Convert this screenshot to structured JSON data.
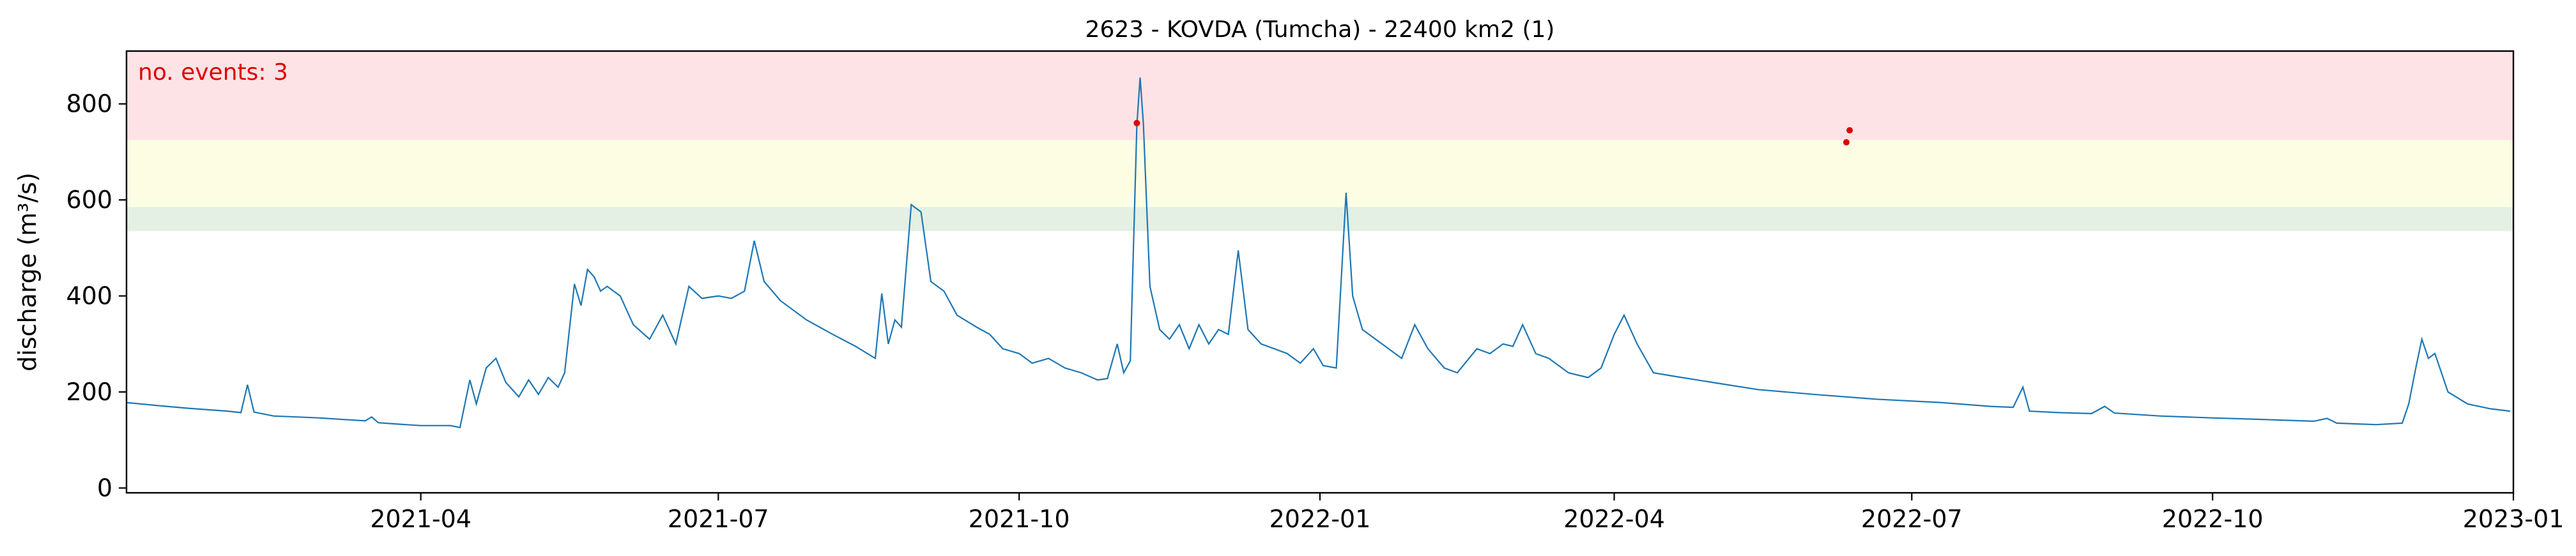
{
  "chart_data": {
    "type": "line",
    "title": "2623 - KOVDA (Tumcha) - 22400 km2 (1)",
    "xlabel": "",
    "ylabel": "discharge (m³/s)",
    "xlim": [
      "2021-01-01",
      "2023-01-01"
    ],
    "ylim": [
      -10,
      910
    ],
    "x_ticks": [
      "2021-04-01",
      "2021-07-01",
      "2021-10-01",
      "2022-01-01",
      "2022-04-01",
      "2022-07-01",
      "2022-10-01",
      "2023-01-01"
    ],
    "x_tick_labels": [
      "2021-04",
      "2021-07",
      "2021-10",
      "2022-01",
      "2022-04",
      "2022-07",
      "2022-10",
      "2023-01"
    ],
    "y_ticks": [
      0,
      200,
      400,
      600,
      800
    ],
    "y_tick_labels": [
      "0",
      "200",
      "400",
      "600",
      "800"
    ],
    "grid": false,
    "threshold_bands": [
      {
        "from": 535,
        "to": 585,
        "color": "#e3f0e3"
      },
      {
        "from": 585,
        "to": 725,
        "color": "#fdfde3"
      },
      {
        "from": 725,
        "to": 910,
        "color": "#fde3e5"
      }
    ],
    "annotation": {
      "text": "no. events: 3",
      "color": "#e00000"
    },
    "series": [
      {
        "color": "#1f77b4",
        "points": [
          [
            "2021-01-01",
            178
          ],
          [
            "2021-01-10",
            172
          ],
          [
            "2021-01-20",
            166
          ],
          [
            "2021-02-01",
            160
          ],
          [
            "2021-02-05",
            157
          ],
          [
            "2021-02-07",
            215
          ],
          [
            "2021-02-09",
            158
          ],
          [
            "2021-02-15",
            150
          ],
          [
            "2021-03-01",
            146
          ],
          [
            "2021-03-10",
            142
          ],
          [
            "2021-03-15",
            140
          ],
          [
            "2021-03-17",
            148
          ],
          [
            "2021-03-19",
            136
          ],
          [
            "2021-03-25",
            133
          ],
          [
            "2021-04-01",
            130
          ],
          [
            "2021-04-10",
            130
          ],
          [
            "2021-04-13",
            126
          ],
          [
            "2021-04-16",
            225
          ],
          [
            "2021-04-18",
            175
          ],
          [
            "2021-04-21",
            250
          ],
          [
            "2021-04-24",
            270
          ],
          [
            "2021-04-27",
            220
          ],
          [
            "2021-05-01",
            190
          ],
          [
            "2021-05-04",
            225
          ],
          [
            "2021-05-07",
            195
          ],
          [
            "2021-05-10",
            230
          ],
          [
            "2021-05-13",
            210
          ],
          [
            "2021-05-15",
            240
          ],
          [
            "2021-05-18",
            425
          ],
          [
            "2021-05-20",
            380
          ],
          [
            "2021-05-22",
            455
          ],
          [
            "2021-05-24",
            440
          ],
          [
            "2021-05-26",
            410
          ],
          [
            "2021-05-28",
            420
          ],
          [
            "2021-06-01",
            400
          ],
          [
            "2021-06-05",
            340
          ],
          [
            "2021-06-10",
            310
          ],
          [
            "2021-06-14",
            360
          ],
          [
            "2021-06-18",
            300
          ],
          [
            "2021-06-22",
            420
          ],
          [
            "2021-06-26",
            395
          ],
          [
            "2021-07-01",
            400
          ],
          [
            "2021-07-05",
            395
          ],
          [
            "2021-07-09",
            410
          ],
          [
            "2021-07-12",
            515
          ],
          [
            "2021-07-15",
            430
          ],
          [
            "2021-07-20",
            390
          ],
          [
            "2021-07-28",
            350
          ],
          [
            "2021-08-05",
            320
          ],
          [
            "2021-08-12",
            295
          ],
          [
            "2021-08-18",
            270
          ],
          [
            "2021-08-20",
            405
          ],
          [
            "2021-08-22",
            300
          ],
          [
            "2021-08-24",
            350
          ],
          [
            "2021-08-26",
            335
          ],
          [
            "2021-08-29",
            590
          ],
          [
            "2021-09-01",
            575
          ],
          [
            "2021-09-04",
            430
          ],
          [
            "2021-09-08",
            410
          ],
          [
            "2021-09-12",
            360
          ],
          [
            "2021-09-18",
            335
          ],
          [
            "2021-09-22",
            320
          ],
          [
            "2021-09-26",
            290
          ],
          [
            "2021-10-01",
            280
          ],
          [
            "2021-10-05",
            260
          ],
          [
            "2021-10-10",
            270
          ],
          [
            "2021-10-15",
            250
          ],
          [
            "2021-10-20",
            240
          ],
          [
            "2021-10-25",
            225
          ],
          [
            "2021-10-28",
            228
          ],
          [
            "2021-10-31",
            300
          ],
          [
            "2021-11-02",
            240
          ],
          [
            "2021-11-04",
            265
          ],
          [
            "2021-11-06",
            755
          ],
          [
            "2021-11-07",
            855
          ],
          [
            "2021-11-08",
            760
          ],
          [
            "2021-11-10",
            420
          ],
          [
            "2021-11-13",
            330
          ],
          [
            "2021-11-16",
            310
          ],
          [
            "2021-11-19",
            340
          ],
          [
            "2021-11-22",
            290
          ],
          [
            "2021-11-25",
            340
          ],
          [
            "2021-11-28",
            300
          ],
          [
            "2021-12-01",
            330
          ],
          [
            "2021-12-04",
            320
          ],
          [
            "2021-12-07",
            495
          ],
          [
            "2021-12-10",
            330
          ],
          [
            "2021-12-14",
            300
          ],
          [
            "2021-12-18",
            290
          ],
          [
            "2021-12-22",
            280
          ],
          [
            "2021-12-26",
            260
          ],
          [
            "2021-12-30",
            290
          ],
          [
            "2022-01-02",
            255
          ],
          [
            "2022-01-06",
            250
          ],
          [
            "2022-01-09",
            615
          ],
          [
            "2022-01-11",
            400
          ],
          [
            "2022-01-14",
            330
          ],
          [
            "2022-01-20",
            300
          ],
          [
            "2022-01-26",
            270
          ],
          [
            "2022-01-30",
            340
          ],
          [
            "2022-02-03",
            290
          ],
          [
            "2022-02-08",
            250
          ],
          [
            "2022-02-12",
            240
          ],
          [
            "2022-02-18",
            290
          ],
          [
            "2022-02-22",
            280
          ],
          [
            "2022-02-26",
            300
          ],
          [
            "2022-03-01",
            295
          ],
          [
            "2022-03-04",
            340
          ],
          [
            "2022-03-08",
            280
          ],
          [
            "2022-03-12",
            270
          ],
          [
            "2022-03-18",
            240
          ],
          [
            "2022-03-24",
            230
          ],
          [
            "2022-03-28",
            250
          ],
          [
            "2022-04-01",
            320
          ],
          [
            "2022-04-04",
            360
          ],
          [
            "2022-04-08",
            300
          ],
          [
            "2022-04-13",
            240
          ],
          [
            "2022-04-20",
            232
          ],
          [
            "2022-05-01",
            220
          ],
          [
            "2022-05-15",
            205
          ],
          [
            "2022-06-01",
            195
          ],
          [
            "2022-06-20",
            185
          ],
          [
            "2022-07-10",
            178
          ],
          [
            "2022-07-25",
            170
          ],
          [
            "2022-08-01",
            168
          ],
          [
            "2022-08-04",
            210
          ],
          [
            "2022-08-06",
            160
          ],
          [
            "2022-08-15",
            157
          ],
          [
            "2022-08-25",
            155
          ],
          [
            "2022-08-29",
            170
          ],
          [
            "2022-09-01",
            156
          ],
          [
            "2022-09-15",
            150
          ],
          [
            "2022-10-01",
            146
          ],
          [
            "2022-10-15",
            143
          ],
          [
            "2022-11-01",
            139
          ],
          [
            "2022-11-05",
            145
          ],
          [
            "2022-11-08",
            135
          ],
          [
            "2022-11-20",
            132
          ],
          [
            "2022-11-28",
            135
          ],
          [
            "2022-11-30",
            175
          ],
          [
            "2022-12-02",
            245
          ],
          [
            "2022-12-04",
            310
          ],
          [
            "2022-12-06",
            270
          ],
          [
            "2022-12-08",
            280
          ],
          [
            "2022-12-12",
            200
          ],
          [
            "2022-12-18",
            175
          ],
          [
            "2022-12-25",
            165
          ],
          [
            "2022-12-31",
            160
          ]
        ]
      }
    ],
    "events": [
      {
        "x": "2021-11-06",
        "y": 760
      },
      {
        "x": "2022-06-11",
        "y": 720
      },
      {
        "x": "2022-06-12",
        "y": 745
      }
    ]
  }
}
